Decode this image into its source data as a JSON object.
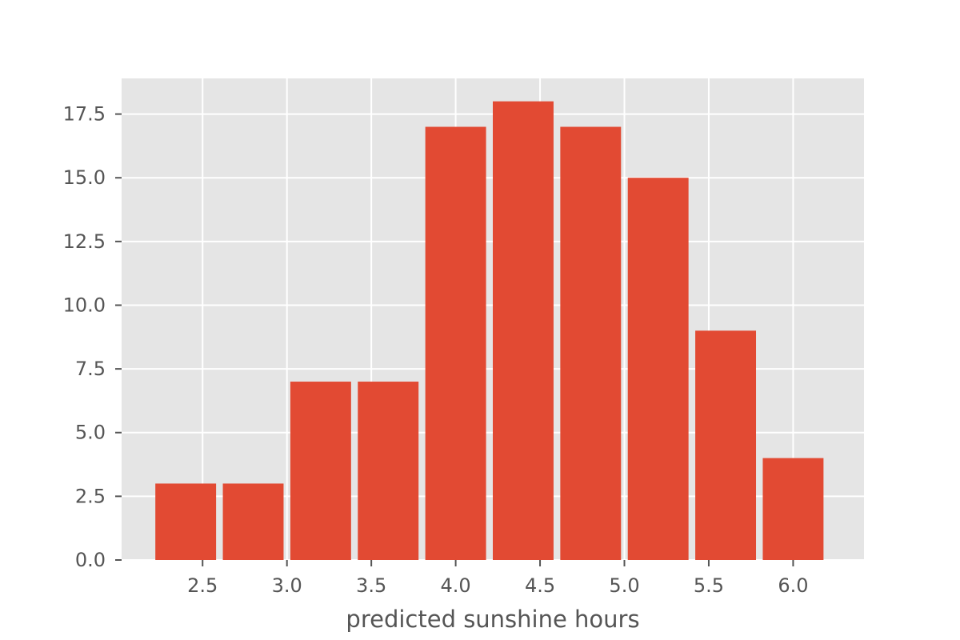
{
  "chart_data": {
    "type": "bar",
    "subtype": "histogram",
    "xlabel": "predicted sunshine hours",
    "ylabel": "",
    "title": "",
    "bins": [
      {
        "x0": 2.2,
        "x1": 2.6,
        "value": 3
      },
      {
        "x0": 2.6,
        "x1": 3.0,
        "value": 3
      },
      {
        "x0": 3.0,
        "x1": 3.4,
        "value": 7
      },
      {
        "x0": 3.4,
        "x1": 3.8,
        "value": 7
      },
      {
        "x0": 3.8,
        "x1": 4.2,
        "value": 17
      },
      {
        "x0": 4.2,
        "x1": 4.6,
        "value": 18
      },
      {
        "x0": 4.6,
        "x1": 5.0,
        "value": 17
      },
      {
        "x0": 5.0,
        "x1": 5.4,
        "value": 15
      },
      {
        "x0": 5.4,
        "x1": 5.8,
        "value": 9
      },
      {
        "x0": 5.8,
        "x1": 6.2,
        "value": 4
      }
    ],
    "xlim": [
      2.02,
      6.42
    ],
    "ylim": [
      0,
      18.9
    ],
    "xticks": [
      2.5,
      3.0,
      3.5,
      4.0,
      4.5,
      5.0,
      5.5,
      6.0
    ],
    "xtick_labels": [
      "2.5",
      "3.0",
      "3.5",
      "4.0",
      "4.5",
      "5.0",
      "5.5",
      "6.0"
    ],
    "yticks": [
      0,
      2.5,
      5,
      7.5,
      10,
      12.5,
      15,
      17.5
    ],
    "ytick_labels": [
      "0.0",
      "2.5",
      "5.0",
      "7.5",
      "10.0",
      "12.5",
      "15.0",
      "17.5"
    ],
    "grid": true,
    "colors": {
      "bar": "#E24A33",
      "plot_background": "#E5E5E5",
      "grid": "#FFFFFF",
      "text": "#555555"
    }
  }
}
